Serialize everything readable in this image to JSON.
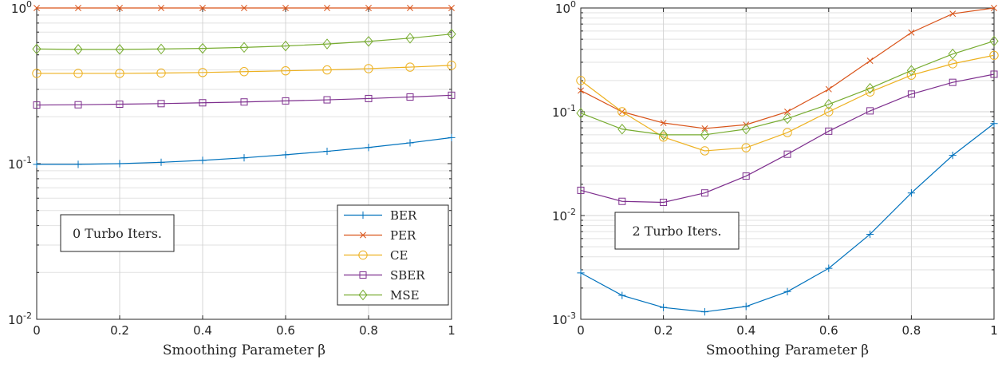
{
  "chart_data": [
    {
      "type": "line",
      "xscale": "linear",
      "yscale": "log",
      "xlim": [
        0,
        1
      ],
      "ylim": [
        0.01,
        1
      ],
      "grid": true,
      "xlabel": "Smoothing Parameter β",
      "xticks": [
        0,
        0.2,
        0.4,
        0.6,
        0.8,
        1
      ],
      "xtick_labels": [
        "0",
        "0.2",
        "0.4",
        "0.6",
        "0.8",
        "1"
      ],
      "yticks": [
        0.01,
        0.1,
        1
      ],
      "ytick_labels": [
        {
          "base": "10",
          "exp": "-2"
        },
        {
          "base": "10",
          "exp": "-1"
        },
        {
          "base": "10",
          "exp": "0"
        }
      ],
      "annotation": "0 Turbo Iters.",
      "legend_position": "bottom-right",
      "x": [
        0,
        0.1,
        0.2,
        0.3,
        0.4,
        0.5,
        0.6,
        0.7,
        0.8,
        0.9,
        1.0
      ],
      "series": [
        {
          "name": "BER",
          "color": "#0072BD",
          "marker": "plus",
          "values": [
            0.099,
            0.099,
            0.1,
            0.102,
            0.105,
            0.109,
            0.114,
            0.12,
            0.127,
            0.136,
            0.147
          ]
        },
        {
          "name": "PER",
          "color": "#D95319",
          "marker": "x",
          "values": [
            1,
            1,
            1,
            1,
            1,
            1,
            1,
            1,
            1,
            1,
            1
          ]
        },
        {
          "name": "CE",
          "color": "#EDB120",
          "marker": "circle",
          "values": [
            0.38,
            0.38,
            0.38,
            0.382,
            0.385,
            0.39,
            0.395,
            0.4,
            0.408,
            0.417,
            0.428
          ]
        },
        {
          "name": "SBER",
          "color": "#7E2F8E",
          "marker": "square",
          "values": [
            0.238,
            0.239,
            0.241,
            0.243,
            0.246,
            0.249,
            0.253,
            0.257,
            0.262,
            0.268,
            0.275
          ]
        },
        {
          "name": "MSE",
          "color": "#77AC30",
          "marker": "diamond",
          "values": [
            0.545,
            0.542,
            0.542,
            0.545,
            0.55,
            0.558,
            0.57,
            0.587,
            0.61,
            0.64,
            0.68
          ]
        }
      ]
    },
    {
      "type": "line",
      "xscale": "linear",
      "yscale": "log",
      "xlim": [
        0,
        1
      ],
      "ylim": [
        0.001,
        1
      ],
      "grid": true,
      "xlabel": "Smoothing Parameter β",
      "xticks": [
        0,
        0.2,
        0.4,
        0.6,
        0.8,
        1
      ],
      "xtick_labels": [
        "0",
        "0.2",
        "0.4",
        "0.6",
        "0.8",
        "1"
      ],
      "yticks": [
        0.001,
        0.01,
        0.1,
        1
      ],
      "ytick_labels": [
        {
          "base": "10",
          "exp": "-3"
        },
        {
          "base": "10",
          "exp": "-2"
        },
        {
          "base": "10",
          "exp": "-1"
        },
        {
          "base": "10",
          "exp": "0"
        }
      ],
      "annotation": "2 Turbo Iters.",
      "x": [
        0,
        0.1,
        0.2,
        0.3,
        0.4,
        0.5,
        0.6,
        0.7,
        0.8,
        0.9,
        1.0
      ],
      "series": [
        {
          "name": "BER",
          "color": "#0072BD",
          "marker": "plus",
          "values": [
            0.0028,
            0.0017,
            0.0013,
            0.00118,
            0.00133,
            0.00185,
            0.0031,
            0.0066,
            0.0165,
            0.038,
            0.077
          ]
        },
        {
          "name": "PER",
          "color": "#D95319",
          "marker": "x",
          "values": [
            0.16,
            0.1,
            0.078,
            0.069,
            0.075,
            0.1,
            0.165,
            0.31,
            0.58,
            0.88,
            1.0
          ]
        },
        {
          "name": "CE",
          "color": "#EDB120",
          "marker": "circle",
          "values": [
            0.2,
            0.1,
            0.057,
            0.042,
            0.045,
            0.063,
            0.1,
            0.155,
            0.225,
            0.29,
            0.35
          ]
        },
        {
          "name": "SBER",
          "color": "#7E2F8E",
          "marker": "square",
          "values": [
            0.0175,
            0.0137,
            0.0134,
            0.0165,
            0.024,
            0.039,
            0.065,
            0.102,
            0.148,
            0.192,
            0.23
          ]
        },
        {
          "name": "MSE",
          "color": "#77AC30",
          "marker": "diamond",
          "values": [
            0.097,
            0.068,
            0.06,
            0.06,
            0.068,
            0.086,
            0.118,
            0.168,
            0.25,
            0.36,
            0.48
          ]
        }
      ]
    }
  ]
}
